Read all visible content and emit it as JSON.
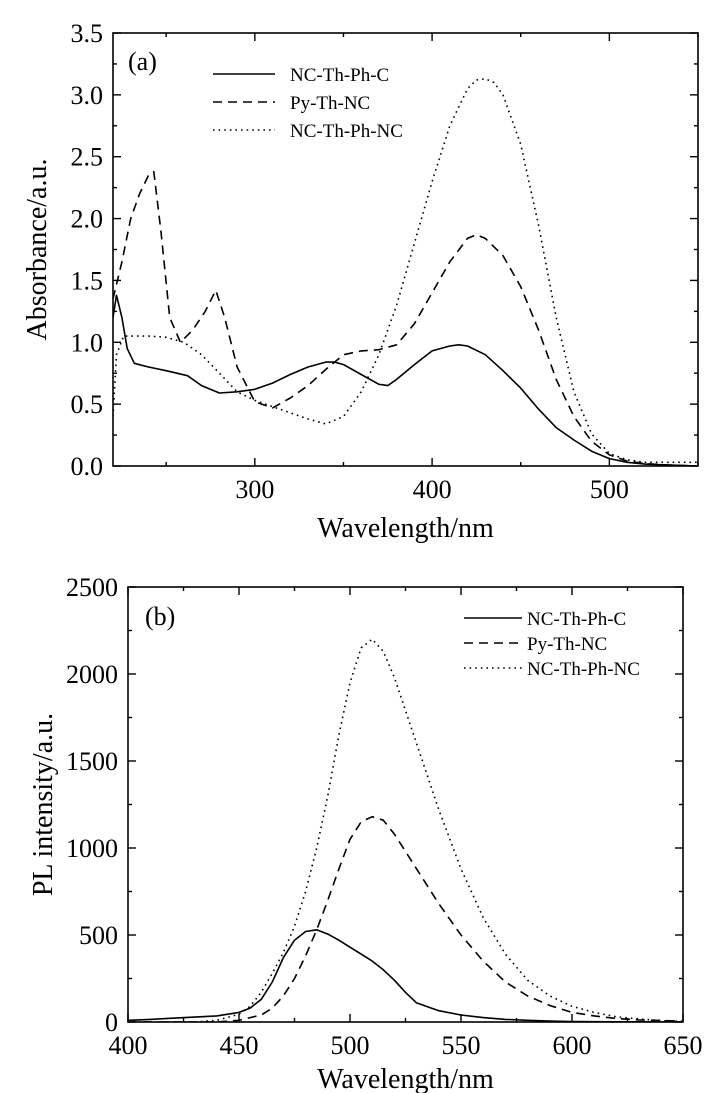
{
  "chart_data": [
    {
      "type": "line",
      "panel_label": "(a)",
      "xlabel": "Wavelength/nm",
      "ylabel": "Absorbance/a.u.",
      "xlim": [
        220,
        550
      ],
      "ylim": [
        0.0,
        3.5
      ],
      "xticks": [
        300,
        400,
        500
      ],
      "yticks": [
        0.0,
        0.5,
        1.0,
        1.5,
        2.0,
        2.5,
        3.0,
        3.5
      ],
      "ytick_labels": [
        "0.0",
        "0.5",
        "1.0",
        "1.5",
        "2.0",
        "2.5",
        "3.0",
        "3.5"
      ],
      "legend_position": "top-left",
      "series": [
        {
          "name": "NC-Th-Ph-C",
          "style": "solid",
          "x": [
            220,
            222,
            225,
            228,
            232,
            240,
            250,
            262,
            270,
            280,
            290,
            300,
            310,
            320,
            330,
            340,
            345,
            350,
            360,
            370,
            375,
            380,
            390,
            400,
            410,
            415,
            420,
            430,
            440,
            450,
            460,
            470,
            480,
            490,
            500,
            510,
            520,
            530,
            540,
            550
          ],
          "y": [
            1.2,
            1.38,
            1.2,
            0.95,
            0.83,
            0.8,
            0.77,
            0.73,
            0.65,
            0.59,
            0.6,
            0.62,
            0.67,
            0.74,
            0.8,
            0.84,
            0.84,
            0.82,
            0.74,
            0.66,
            0.65,
            0.7,
            0.82,
            0.93,
            0.97,
            0.98,
            0.97,
            0.9,
            0.77,
            0.63,
            0.46,
            0.31,
            0.21,
            0.12,
            0.06,
            0.03,
            0.015,
            0.01,
            0.005,
            0.0
          ]
        },
        {
          "name": "Py-Th-NC",
          "style": "dashed",
          "x": [
            220,
            225,
            230,
            235,
            240,
            243,
            247,
            252,
            258,
            265,
            272,
            278,
            283,
            290,
            300,
            310,
            320,
            330,
            340,
            350,
            360,
            370,
            380,
            390,
            400,
            410,
            420,
            425,
            430,
            440,
            450,
            460,
            470,
            480,
            490,
            500,
            510,
            520,
            530,
            540,
            550
          ],
          "y": [
            1.35,
            1.65,
            2.0,
            2.2,
            2.35,
            2.38,
            1.9,
            1.2,
            1.0,
            1.1,
            1.25,
            1.42,
            1.2,
            0.8,
            0.52,
            0.47,
            0.55,
            0.65,
            0.78,
            0.9,
            0.93,
            0.94,
            0.98,
            1.15,
            1.4,
            1.65,
            1.84,
            1.87,
            1.84,
            1.7,
            1.45,
            1.1,
            0.7,
            0.4,
            0.2,
            0.09,
            0.04,
            0.02,
            0.01,
            0.005,
            0.0
          ]
        },
        {
          "name": "NC-Th-Ph-NC",
          "style": "dotted",
          "x": [
            220,
            222,
            226,
            232,
            240,
            250,
            260,
            270,
            280,
            290,
            300,
            310,
            320,
            330,
            340,
            350,
            360,
            370,
            380,
            390,
            400,
            410,
            420,
            425,
            430,
            435,
            440,
            450,
            460,
            470,
            480,
            490,
            500,
            510,
            520,
            530,
            540,
            550
          ],
          "y": [
            0.4,
            0.9,
            1.05,
            1.05,
            1.05,
            1.04,
            1.0,
            0.9,
            0.75,
            0.6,
            0.53,
            0.48,
            0.43,
            0.38,
            0.34,
            0.4,
            0.6,
            0.9,
            1.3,
            1.8,
            2.3,
            2.75,
            3.05,
            3.12,
            3.13,
            3.1,
            3.0,
            2.6,
            1.95,
            1.2,
            0.6,
            0.26,
            0.1,
            0.05,
            0.03,
            0.03,
            0.03,
            0.03
          ]
        }
      ]
    },
    {
      "type": "line",
      "panel_label": "(b)",
      "xlabel": "Wavelength/nm",
      "ylabel": "PL intensity/a.u.",
      "xlim": [
        400,
        650
      ],
      "ylim": [
        0,
        2500
      ],
      "xticks": [
        400,
        450,
        500,
        550,
        600,
        650
      ],
      "yticks": [
        0,
        500,
        1000,
        1500,
        2000,
        2500
      ],
      "ytick_labels": [
        "0",
        "500",
        "1000",
        "1500",
        "2000",
        "2500"
      ],
      "legend_position": "top-right",
      "series": [
        {
          "name": "NC-Th-Ph-C",
          "style": "solid",
          "x": [
            400,
            410,
            420,
            430,
            440,
            450,
            455,
            460,
            465,
            470,
            475,
            480,
            485,
            490,
            495,
            500,
            505,
            510,
            515,
            520,
            525,
            530,
            540,
            550,
            560,
            570,
            580,
            590,
            600,
            620,
            650
          ],
          "y": [
            10,
            15,
            22,
            28,
            35,
            55,
            80,
            130,
            230,
            370,
            470,
            520,
            530,
            505,
            470,
            430,
            390,
            350,
            300,
            240,
            170,
            110,
            65,
            40,
            25,
            15,
            10,
            5,
            3,
            1,
            0
          ]
        },
        {
          "name": "Py-Th-NC",
          "style": "dashed",
          "x": [
            400,
            440,
            450,
            460,
            465,
            470,
            475,
            480,
            485,
            490,
            495,
            500,
            505,
            510,
            515,
            520,
            530,
            540,
            550,
            560,
            570,
            580,
            590,
            600,
            610,
            620,
            630,
            650
          ],
          "y": [
            0,
            0,
            10,
            40,
            80,
            150,
            250,
            380,
            530,
            700,
            880,
            1050,
            1150,
            1180,
            1160,
            1080,
            880,
            680,
            500,
            350,
            230,
            150,
            95,
            55,
            35,
            20,
            12,
            5
          ]
        },
        {
          "name": "NC-Th-Ph-NC",
          "style": "dotted",
          "x": [
            400,
            430,
            440,
            450,
            455,
            460,
            465,
            470,
            475,
            480,
            485,
            490,
            495,
            500,
            505,
            510,
            515,
            520,
            530,
            540,
            550,
            560,
            570,
            580,
            590,
            600,
            610,
            620,
            630,
            640,
            650
          ],
          "y": [
            0,
            0,
            10,
            45,
            90,
            170,
            280,
            400,
            550,
            750,
            1000,
            1300,
            1650,
            1950,
            2150,
            2200,
            2130,
            1980,
            1600,
            1220,
            880,
            600,
            390,
            240,
            150,
            90,
            55,
            30,
            18,
            8,
            3
          ]
        }
      ]
    }
  ]
}
